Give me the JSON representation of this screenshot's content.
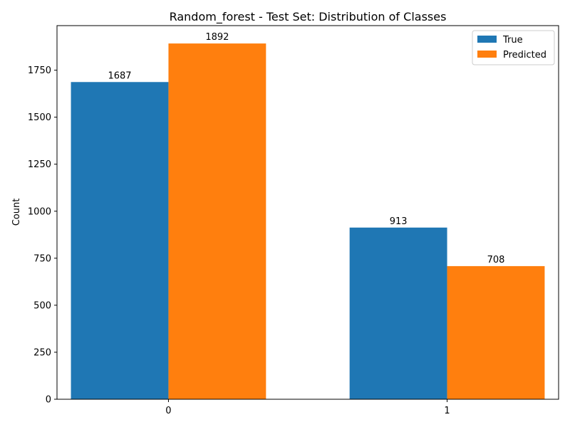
{
  "chart_data": {
    "type": "bar",
    "title": "Random_forest - Test Set: Distribution of Classes",
    "xlabel": "",
    "ylabel": "Count",
    "categories": [
      "0",
      "1"
    ],
    "series": [
      {
        "name": "True",
        "color": "#1f77b4",
        "values": [
          1687,
          913
        ]
      },
      {
        "name": "Predicted",
        "color": "#ff7f0e",
        "values": [
          1892,
          708
        ]
      }
    ],
    "ylim": [
      0,
      1987
    ],
    "yticks": [
      "0",
      "250",
      "500",
      "750",
      "1000",
      "1250",
      "1500",
      "1750"
    ],
    "grid": false,
    "legend_position": "top-right"
  }
}
